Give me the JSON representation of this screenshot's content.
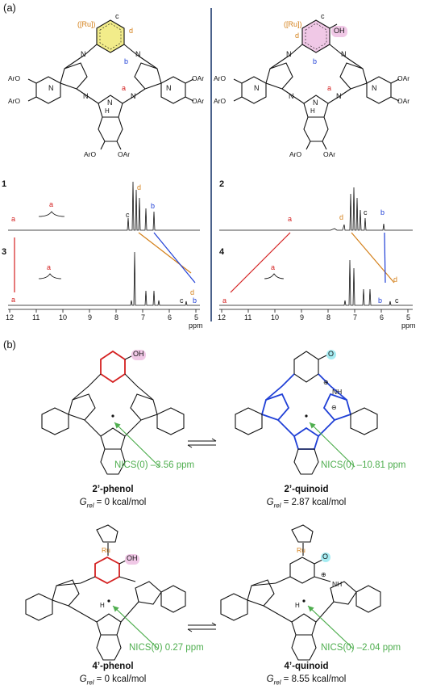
{
  "figure": {
    "panel_a": "(a)",
    "panel_b": "(b)",
    "colors": {
      "red": "#d42020",
      "orange": "#d4801a",
      "blue": "#1f3fd6",
      "green": "#4fae4f",
      "yellow_fill": "#f2ec8a",
      "pink_fill": "#f0c8e6",
      "cyan_fill": "#a6ecf2",
      "divider": "#1e3a6e"
    },
    "structures": {
      "aro_label": "ArO",
      "oar_label": "OAr",
      "ru_label": "([Ru])",
      "oh_label": "OH",
      "site_a": "a",
      "site_b": "b",
      "site_c": "c",
      "site_d": "d"
    },
    "spectra": {
      "c1": "1",
      "c2": "2",
      "c3": "3",
      "c4": "4",
      "axis_unit": "ppm",
      "ticks": [
        "12",
        "11",
        "10",
        "9",
        "8",
        "7",
        "6",
        "5"
      ]
    },
    "panel_b_items": [
      {
        "title": "2’-phenol",
        "grel_prefix": "G",
        "grel_sub": "rel",
        "grel_value": " = 0 kcal/mol",
        "nics": "NICS(0) –3.56 ppm"
      },
      {
        "title": "2’-quinoid",
        "grel_prefix": "G",
        "grel_sub": "rel",
        "grel_value": " = 2.87 kcal/mol",
        "nics": "NICS(0) –10.81 ppm"
      },
      {
        "title": "4’-phenol",
        "grel_prefix": "G",
        "grel_sub": "rel",
        "grel_value": " = 0 kcal/mol",
        "nics": "NICS(0) 0.27 ppm"
      },
      {
        "title": "4’-quinoid",
        "grel_prefix": "G",
        "grel_sub": "rel",
        "grel_value": " = 8.55 kcal/mol",
        "nics": "NICS(0) –2.04 ppm"
      }
    ],
    "small_labels": {
      "ru": "Ru",
      "oh": "OH",
      "o": "O",
      "nh": "NH",
      "h": "H",
      "n": "N",
      "plus": "⊕",
      "minus": "⊖"
    }
  }
}
